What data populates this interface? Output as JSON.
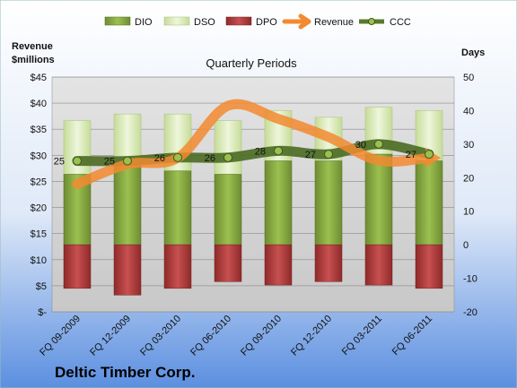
{
  "chart_data": {
    "type": "bar",
    "subtitle": "Quarterly Periods",
    "company": "Deltic Timber Corp.",
    "left_axis_title_line1": "Revenue",
    "left_axis_title_line2": "$millions",
    "right_axis_title": "Days",
    "left_axis": {
      "min": 0,
      "max": 45,
      "step": 5,
      "tick_labels": [
        "$-",
        "$5",
        "$10",
        "$15",
        "$20",
        "$25",
        "$30",
        "$35",
        "$40",
        "$45"
      ]
    },
    "right_axis": {
      "min": -20,
      "max": 50,
      "step": 10,
      "tick_labels": [
        "-20",
        "-10",
        "0",
        "10",
        "20",
        "30",
        "40",
        "50"
      ]
    },
    "grid": true,
    "legend_position": "top",
    "categories": [
      "FQ 09-2009",
      "FQ 12-2009",
      "FQ 03-2010",
      "FQ 06-2010",
      "FQ 09-2010",
      "FQ 12-2010",
      "FQ 03-2011",
      "FQ 06-2011"
    ],
    "series": [
      {
        "name": "DIO",
        "type": "bar",
        "axis": "days",
        "values": [
          21,
          24,
          22,
          21,
          25,
          25,
          27,
          25
        ],
        "color": "#7a9a3a"
      },
      {
        "name": "DSO",
        "type": "bar",
        "axis": "days",
        "values": [
          16,
          15,
          17,
          16,
          15,
          13,
          14,
          15
        ],
        "color": "#d6e8b0"
      },
      {
        "name": "DPO",
        "type": "bar",
        "axis": "days",
        "values": [
          -13,
          -15,
          -13,
          -11,
          -12,
          -11,
          -12,
          -13
        ],
        "color": "#b23b3b"
      },
      {
        "name": "Revenue",
        "type": "line",
        "axis": "revenue",
        "values": [
          24.5,
          28.3,
          29.5,
          39.5,
          37.0,
          33.5,
          29.0,
          29.5
        ],
        "color": "#f28a30"
      },
      {
        "name": "CCC",
        "type": "line",
        "axis": "days",
        "values": [
          25,
          25,
          26,
          26,
          28,
          27,
          30,
          27
        ],
        "color": "#5a7a2a"
      }
    ],
    "ccc_labels": [
      "25",
      "25",
      "26",
      "26",
      "28",
      "27",
      "30",
      "27"
    ]
  }
}
